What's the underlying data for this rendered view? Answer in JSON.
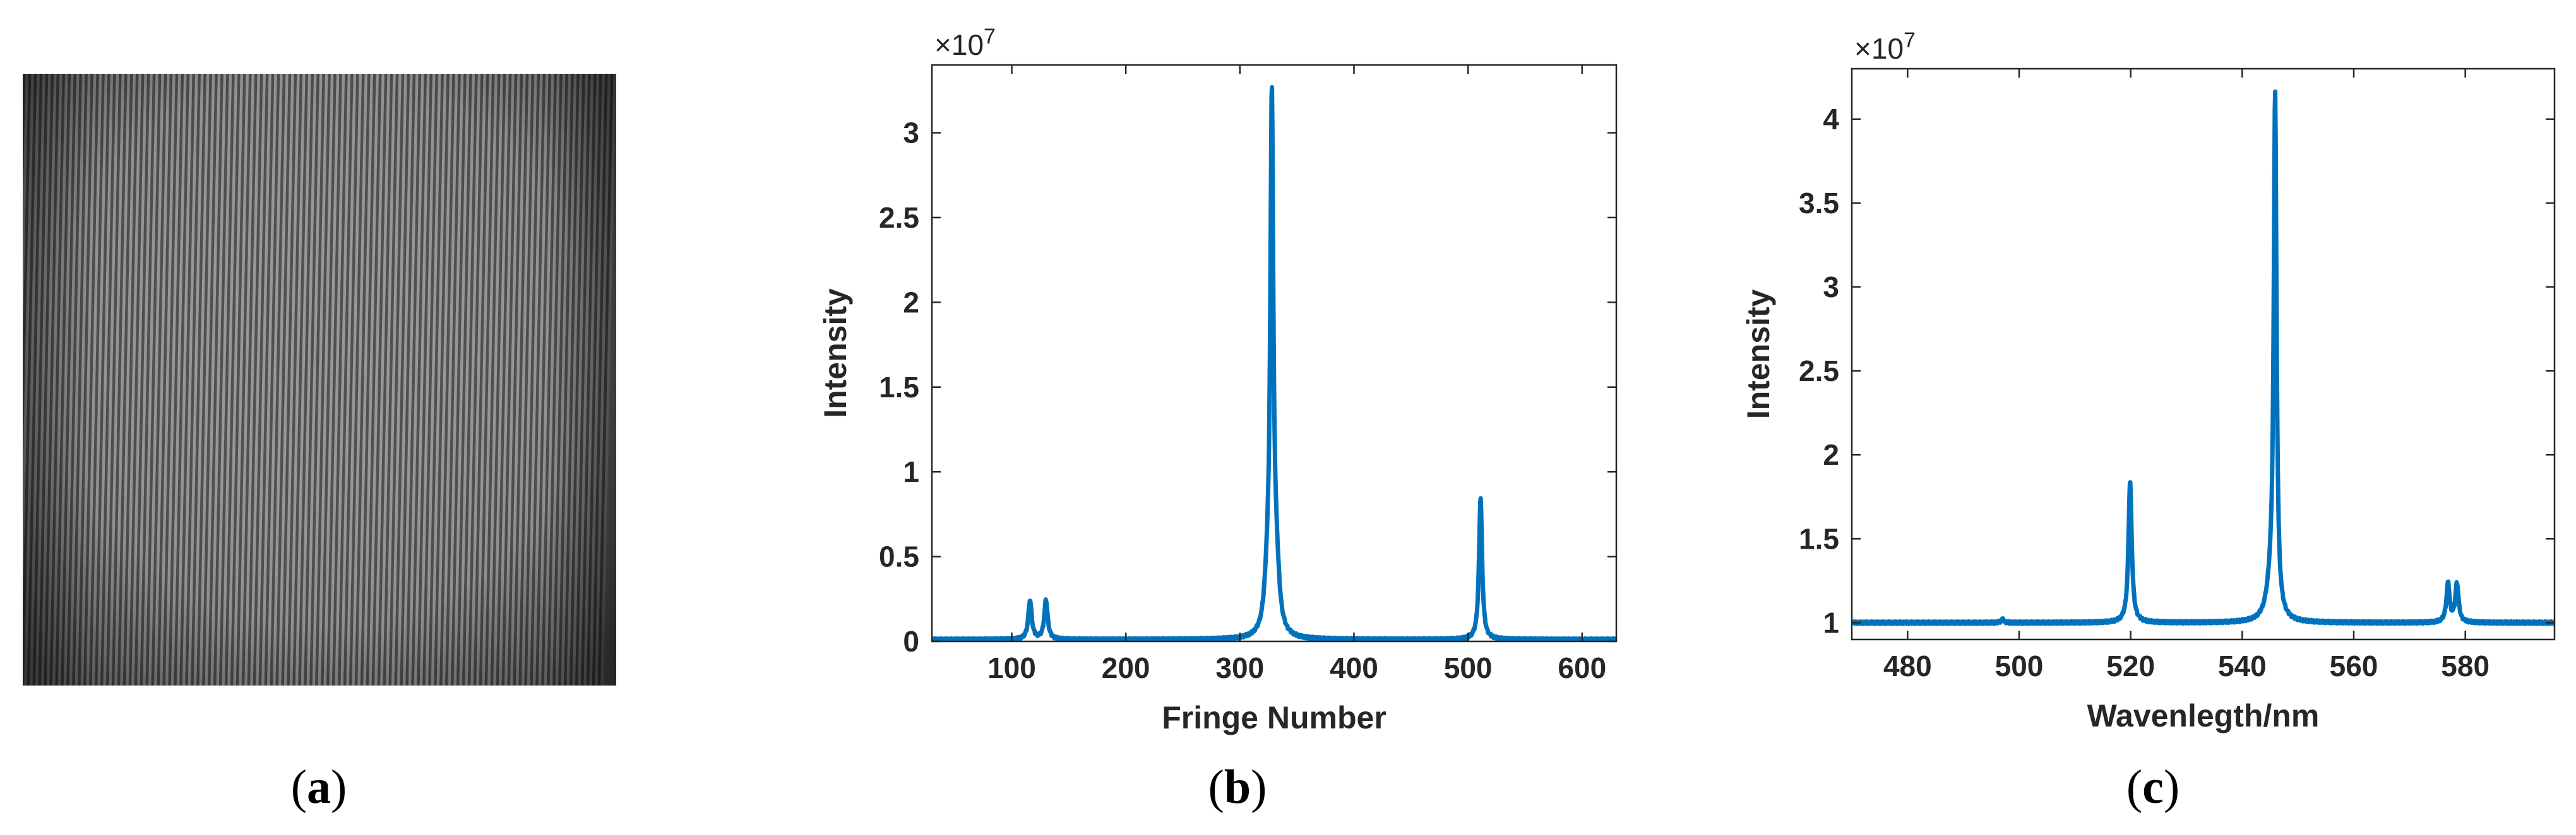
{
  "captions": {
    "a": "a",
    "b": "b",
    "c": "c"
  },
  "image_a": {
    "fringe_count": 105,
    "dark_color": "#2b2b2b",
    "light_color": "#bdbdbd"
  },
  "line_color": "#0072BD",
  "chart_data": [
    {
      "type": "line",
      "panel": "b",
      "xlabel": "Fringe Number",
      "ylabel": "Intensity",
      "exponent_base": "×10",
      "exponent_power": "7",
      "xlim": [
        30,
        630
      ],
      "ylim": [
        0,
        3.4
      ],
      "xticks": [
        100,
        200,
        300,
        400,
        500,
        600
      ],
      "yticks": [
        0,
        0.5,
        1,
        1.5,
        2,
        2.5,
        3
      ],
      "grid": false,
      "baseline": 0.01,
      "peaks": [
        {
          "x": 116,
          "height": 0.23,
          "width": 1.8
        },
        {
          "x": 130,
          "height": 0.23,
          "width": 1.8
        },
        {
          "x": 324,
          "height": 0.24,
          "width": 3.0
        },
        {
          "x": 328,
          "height": 3.08,
          "width": 1.6
        },
        {
          "x": 332,
          "height": 0.31,
          "width": 3.0
        },
        {
          "x": 511,
          "height": 0.84,
          "width": 1.6
        }
      ]
    },
    {
      "type": "line",
      "panel": "c",
      "xlabel": "Wavenlegth/nm",
      "ylabel": "Intensity",
      "exponent_base": "×10",
      "exponent_power": "7",
      "xlim": [
        470,
        596
      ],
      "ylim": [
        0.9,
        4.3
      ],
      "xticks": [
        480,
        500,
        520,
        540,
        560,
        580
      ],
      "yticks": [
        1,
        1.5,
        2,
        2.5,
        3,
        3.5,
        4
      ],
      "grid": false,
      "baseline": 1.0,
      "peaks": [
        {
          "x": 497,
          "height": 0.02,
          "width": 0.3
        },
        {
          "x": 519.9,
          "height": 0.84,
          "width": 0.35
        },
        {
          "x": 545.1,
          "height": 0.17,
          "width": 0.9
        },
        {
          "x": 545.9,
          "height": 3.08,
          "width": 0.3
        },
        {
          "x": 576.9,
          "height": 0.23,
          "width": 0.35
        },
        {
          "x": 578.5,
          "height": 0.23,
          "width": 0.35
        }
      ]
    }
  ]
}
